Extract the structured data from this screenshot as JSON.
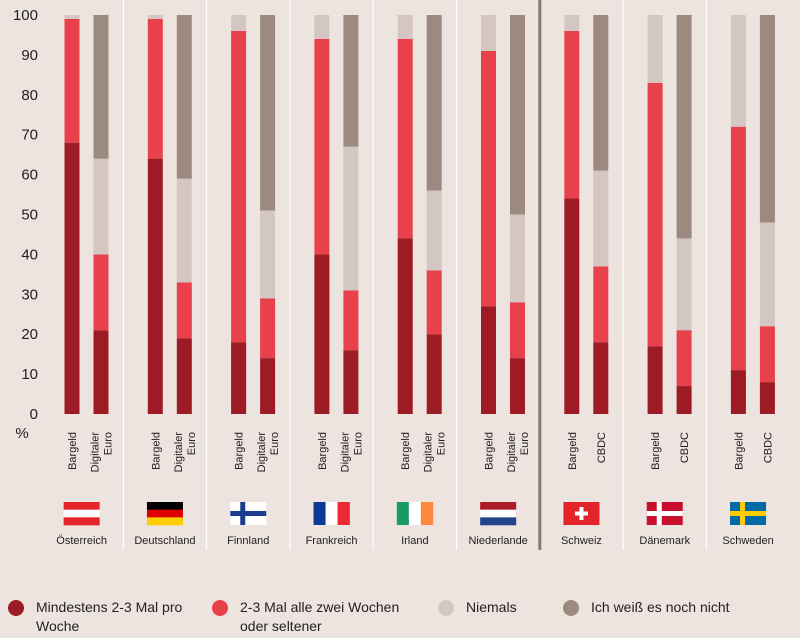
{
  "chart_data": {
    "type": "stacked-bar",
    "y_label": "%",
    "groups": [
      "Österreich",
      "Deutschland",
      "Finnland",
      "Frankreich",
      "Irland",
      "Niederlande",
      "Schweiz",
      "Dänemark",
      "Schweden"
    ],
    "categories": [
      "Bargeld",
      "Digitaler Euro",
      "Bargeld",
      "Digitaler Euro",
      "Bargeld",
      "Digitaler Euro",
      "Bargeld",
      "Digitaler Euro",
      "Bargeld",
      "Digitaler Euro",
      "Bargeld",
      "Digitaler Euro",
      "Bargeld",
      "CBDC",
      "Bargeld",
      "CBDC",
      "Bargeld",
      "CBDC"
    ],
    "series": [
      {
        "name": "Mindestens 2-3 Mal pro Woche",
        "color": "#9c1b25",
        "values": [
          68,
          21,
          64,
          19,
          18,
          14,
          40,
          16,
          44,
          20,
          27,
          14,
          54,
          18,
          17,
          7,
          11,
          8
        ]
      },
      {
        "name": "2-3 Mal alle zwei Wochen oder seltener",
        "color": "#e8414c",
        "values": [
          31,
          19,
          35,
          14,
          78,
          15,
          54,
          15,
          50,
          16,
          64,
          14,
          42,
          19,
          66,
          14,
          61,
          14
        ]
      },
      {
        "name": "Niemals",
        "color": "#d4c7c3",
        "values": [
          1,
          24,
          1,
          26,
          4,
          22,
          6,
          36,
          6,
          20,
          9,
          22,
          4,
          24,
          17,
          23,
          28,
          26
        ]
      },
      {
        "name": "Ich weiß es noch nicht",
        "color": "#9c8a80",
        "values": [
          0,
          36,
          0,
          41,
          0,
          49,
          0,
          33,
          0,
          44,
          0,
          50,
          0,
          39,
          0,
          56,
          0,
          52
        ]
      }
    ],
    "ylim": [
      0,
      100
    ],
    "yticks": [
      0,
      10,
      20,
      30,
      40,
      50,
      60,
      70,
      80,
      90,
      100
    ]
  }
}
